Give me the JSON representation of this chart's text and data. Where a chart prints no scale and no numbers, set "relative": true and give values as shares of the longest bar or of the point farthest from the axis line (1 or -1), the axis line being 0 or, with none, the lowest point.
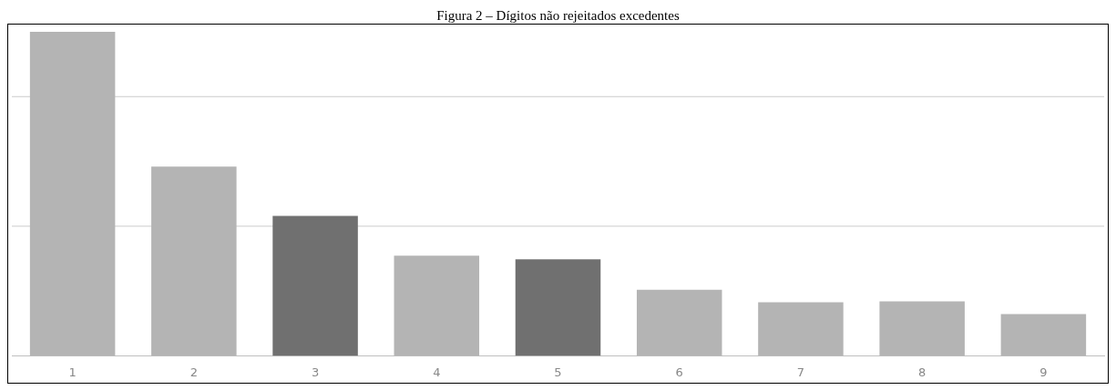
{
  "chart_data": {
    "type": "bar",
    "title": "Figura 2 – Dígitos não rejeitados excedentes",
    "relative": true,
    "ref_lines": [
      {
        "axis": "y",
        "value": 0.4,
        "color": "#cccccc"
      },
      {
        "axis": "y",
        "value": 0.8,
        "color": "#cccccc"
      }
    ],
    "categories": [
      "1",
      "2",
      "3",
      "4",
      "5",
      "6",
      "7",
      "8",
      "9"
    ],
    "values": [
      1,
      0.584,
      0.432,
      0.309,
      0.298,
      0.204,
      0.165,
      0.168,
      0.129
    ],
    "colors": [
      "#b4b4b4",
      "#b4b4b4",
      "#707070",
      "#b4b4b4",
      "#707070",
      "#b4b4b4",
      "#b4b4b4",
      "#b4b4b4",
      "#b4b4b4"
    ]
  }
}
